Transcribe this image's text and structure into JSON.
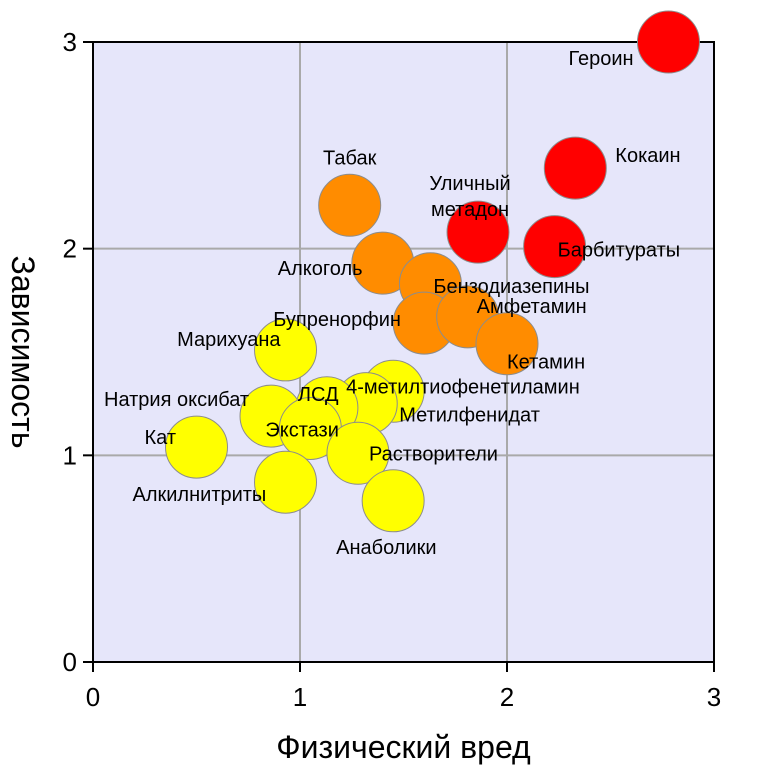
{
  "chart_data": {
    "type": "scatter",
    "xlabel": "Физический вред",
    "ylabel": "Зависимость",
    "xlim": [
      0,
      3
    ],
    "ylim": [
      0,
      3
    ],
    "xticks": [
      "0",
      "1",
      "2",
      "3"
    ],
    "yticks": [
      "0",
      "1",
      "2",
      "3"
    ],
    "grid": true,
    "colors": {
      "background": "#e6e6fa",
      "grid": "#a9a9a9",
      "high": "#ff0000",
      "mid": "#ff8c00",
      "low": "#ffff00"
    },
    "points": [
      {
        "name": "Героин",
        "x": 2.78,
        "y": 3.0,
        "level": "high"
      },
      {
        "name": "Кокаин",
        "x": 2.33,
        "y": 2.39,
        "level": "high"
      },
      {
        "name": "Барбитураты",
        "x": 2.23,
        "y": 2.01,
        "level": "high"
      },
      {
        "name": "Уличный метадон",
        "x": 1.86,
        "y": 2.08,
        "level": "high"
      },
      {
        "name": "Табак",
        "x": 1.24,
        "y": 2.21,
        "level": "mid"
      },
      {
        "name": "Алкоголь",
        "x": 1.4,
        "y": 1.93,
        "level": "mid"
      },
      {
        "name": "Бензодиазепины",
        "x": 1.63,
        "y": 1.83,
        "level": "mid"
      },
      {
        "name": "Бупренорфин",
        "x": 1.6,
        "y": 1.64,
        "level": "mid"
      },
      {
        "name": "Амфетамин",
        "x": 1.81,
        "y": 1.67,
        "level": "mid"
      },
      {
        "name": "Кетамин",
        "x": 2.0,
        "y": 1.54,
        "level": "mid"
      },
      {
        "name": "Марихуана",
        "x": 0.93,
        "y": 1.51,
        "level": "low"
      },
      {
        "name": "4-метилтиофенетиламин",
        "x": 1.45,
        "y": 1.31,
        "level": "low"
      },
      {
        "name": "Метилфенидат",
        "x": 1.32,
        "y": 1.25,
        "level": "low"
      },
      {
        "name": "ЛСД",
        "x": 1.13,
        "y": 1.23,
        "level": "low"
      },
      {
        "name": "Натрия оксибат",
        "x": 0.86,
        "y": 1.19,
        "level": "low"
      },
      {
        "name": "Экстази",
        "x": 1.05,
        "y": 1.13,
        "level": "low"
      },
      {
        "name": "Растворители",
        "x": 1.28,
        "y": 1.01,
        "level": "low"
      },
      {
        "name": "Кат",
        "x": 0.5,
        "y": 1.04,
        "level": "low"
      },
      {
        "name": "Алкилнитриты",
        "x": 0.93,
        "y": 0.87,
        "level": "low"
      },
      {
        "name": "Анаболики",
        "x": 1.45,
        "y": 0.78,
        "level": "low"
      }
    ]
  }
}
